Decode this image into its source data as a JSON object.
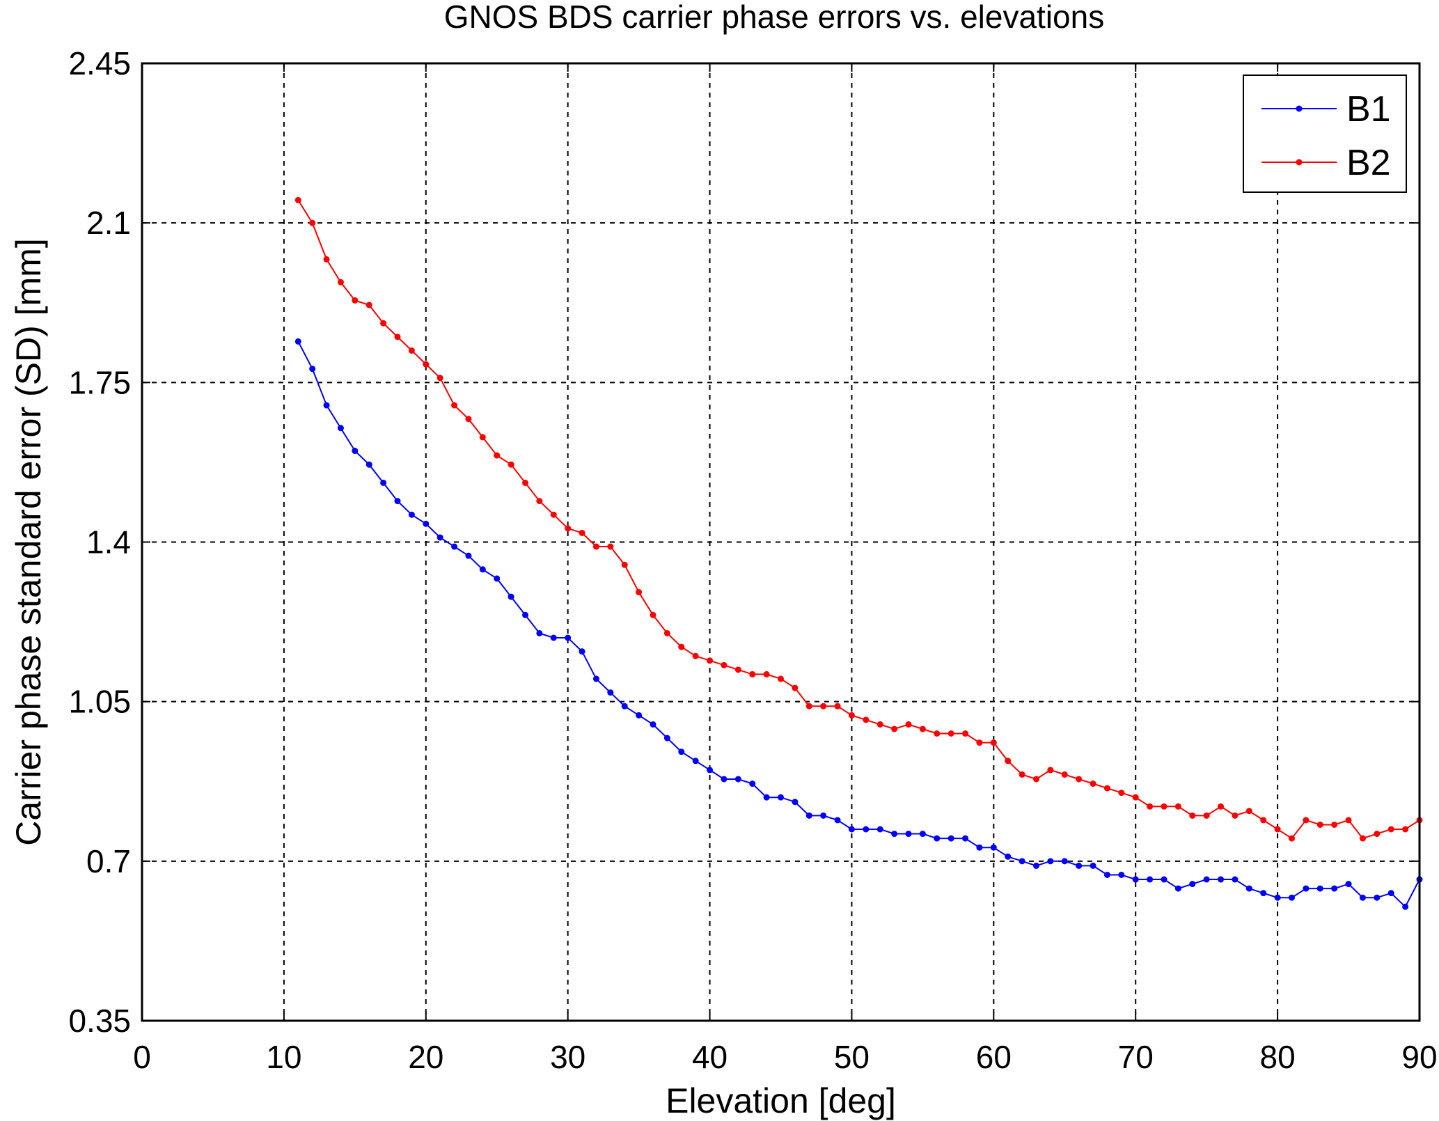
{
  "chart_data": {
    "type": "line",
    "title": "GNOS BDS carrier phase errors vs. elevations",
    "xlabel": "Elevation [deg]",
    "ylabel": "Carrier phase standard error (SD) [mm]",
    "xlim": [
      0,
      90
    ],
    "ylim": [
      0.35,
      2.45
    ],
    "x_ticks": [
      0,
      10,
      20,
      30,
      40,
      50,
      60,
      70,
      80,
      90
    ],
    "x_tick_labels": [
      "0",
      "10",
      "20",
      "30",
      "40",
      "50",
      "60",
      "70",
      "80",
      "90"
    ],
    "y_ticks": [
      0.35,
      0.7,
      1.05,
      1.4,
      1.75,
      2.1,
      2.45
    ],
    "y_tick_labels": [
      "0.35",
      "0.7",
      "1.05",
      "1.4",
      "1.75",
      "2.1",
      "2.45"
    ],
    "grid": true,
    "legend_position": "top-right",
    "x": [
      11,
      12,
      13,
      14,
      15,
      16,
      17,
      18,
      19,
      20,
      21,
      22,
      23,
      24,
      25,
      26,
      27,
      28,
      29,
      30,
      31,
      32,
      33,
      34,
      35,
      36,
      37,
      38,
      39,
      40,
      41,
      42,
      43,
      44,
      45,
      46,
      47,
      48,
      49,
      50,
      51,
      52,
      53,
      54,
      55,
      56,
      57,
      58,
      59,
      60,
      61,
      62,
      63,
      64,
      65,
      66,
      67,
      68,
      69,
      70,
      71,
      72,
      73,
      74,
      75,
      76,
      77,
      78,
      79,
      80,
      81,
      82,
      83,
      84,
      85,
      86,
      87,
      88,
      89,
      90
    ],
    "series": [
      {
        "name": "B1",
        "color": "#0000ff",
        "values": [
          1.84,
          1.78,
          1.7,
          1.65,
          1.6,
          1.57,
          1.53,
          1.49,
          1.46,
          1.44,
          1.41,
          1.39,
          1.37,
          1.34,
          1.32,
          1.28,
          1.24,
          1.2,
          1.19,
          1.19,
          1.16,
          1.1,
          1.07,
          1.04,
          1.02,
          1.0,
          0.97,
          0.94,
          0.92,
          0.9,
          0.88,
          0.88,
          0.87,
          0.84,
          0.84,
          0.83,
          0.8,
          0.8,
          0.79,
          0.77,
          0.77,
          0.77,
          0.76,
          0.76,
          0.76,
          0.75,
          0.75,
          0.75,
          0.73,
          0.73,
          0.71,
          0.7,
          0.69,
          0.7,
          0.7,
          0.69,
          0.69,
          0.67,
          0.67,
          0.66,
          0.66,
          0.66,
          0.64,
          0.65,
          0.66,
          0.66,
          0.66,
          0.64,
          0.63,
          0.62,
          0.62,
          0.64,
          0.64,
          0.64,
          0.65,
          0.62,
          0.62,
          0.63,
          0.6,
          0.66
        ]
      },
      {
        "name": "B2",
        "color": "#ff0000",
        "values": [
          2.15,
          2.1,
          2.02,
          1.97,
          1.93,
          1.92,
          1.88,
          1.85,
          1.82,
          1.79,
          1.76,
          1.7,
          1.67,
          1.63,
          1.59,
          1.57,
          1.53,
          1.49,
          1.46,
          1.43,
          1.42,
          1.39,
          1.39,
          1.35,
          1.29,
          1.24,
          1.2,
          1.17,
          1.15,
          1.14,
          1.13,
          1.12,
          1.11,
          1.11,
          1.1,
          1.08,
          1.04,
          1.04,
          1.04,
          1.02,
          1.01,
          1.0,
          0.99,
          1.0,
          0.99,
          0.98,
          0.98,
          0.98,
          0.96,
          0.96,
          0.92,
          0.89,
          0.88,
          0.9,
          0.89,
          0.88,
          0.87,
          0.86,
          0.85,
          0.84,
          0.82,
          0.82,
          0.82,
          0.8,
          0.8,
          0.82,
          0.8,
          0.81,
          0.79,
          0.77,
          0.75,
          0.79,
          0.78,
          0.78,
          0.79,
          0.75,
          0.76,
          0.77,
          0.77,
          0.79
        ]
      }
    ]
  }
}
